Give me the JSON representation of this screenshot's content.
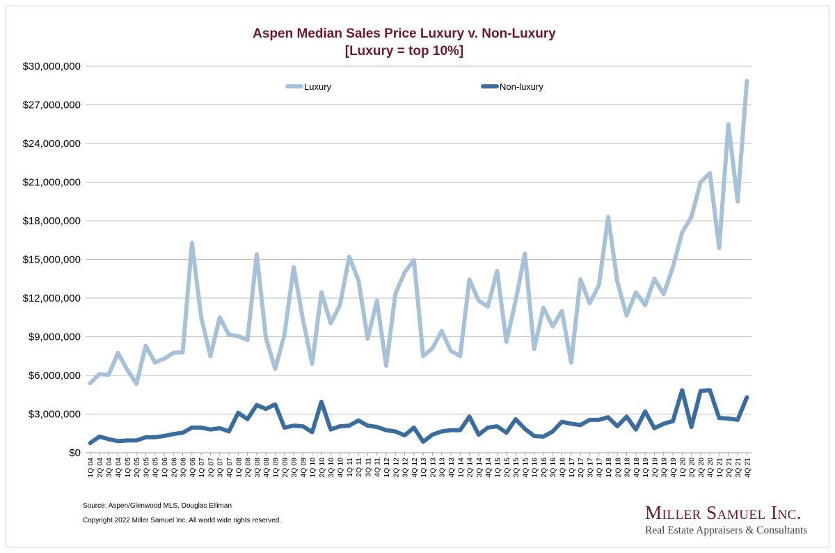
{
  "chart_data": {
    "type": "line",
    "title": "Aspen Median Sales Price Luxury v. Non-Luxury",
    "subtitle": "[Luxury = top 10%]",
    "xlabel": "",
    "ylabel": "",
    "ylim": [
      0,
      30000000
    ],
    "ytick_values": [
      0,
      3000000,
      6000000,
      9000000,
      12000000,
      15000000,
      18000000,
      21000000,
      24000000,
      27000000,
      30000000
    ],
    "ytick_labels": [
      "$0",
      "$3,000,000",
      "$6,000,000",
      "$9,000,000",
      "$12,000,000",
      "$15,000,000",
      "$18,000,000",
      "$21,000,000",
      "$24,000,000",
      "$27,000,000",
      "$30,000,000"
    ],
    "grid": true,
    "legend_position": "top",
    "categories": [
      "1Q 04",
      "2Q 04",
      "3Q 04",
      "4Q 04",
      "1Q 05",
      "2Q 05",
      "3Q 05",
      "4Q 05",
      "1Q 06",
      "2Q 06",
      "3Q 06",
      "4Q 06",
      "1Q 07",
      "2Q 07",
      "3Q 07",
      "4Q 07",
      "1Q 08",
      "2Q 08",
      "3Q 08",
      "4Q 08",
      "1Q 09",
      "2Q 09",
      "3Q 09",
      "4Q 09",
      "1Q 10",
      "2Q 10",
      "3Q 10",
      "4Q 10",
      "1Q 11",
      "2Q 11",
      "3Q 11",
      "4Q 11",
      "1Q 12",
      "2Q 12",
      "3Q 12",
      "4Q 12",
      "1Q 13",
      "2Q 13",
      "3Q 13",
      "4Q 13",
      "1Q 14",
      "2Q 14",
      "3Q 14",
      "4Q 14",
      "1Q 15",
      "2Q 15",
      "3Q 15",
      "4Q 15",
      "1Q 16",
      "2Q 16",
      "3Q 16",
      "4Q 16",
      "1Q 17",
      "2Q 17",
      "3Q 17",
      "4Q 17",
      "1Q 18",
      "2Q 18",
      "3Q 18",
      "4Q 18",
      "1Q 19",
      "2Q 19",
      "3Q 19",
      "4Q 19",
      "1Q 20",
      "2Q 20",
      "3Q 20",
      "4Q 20",
      "1Q 21",
      "2Q 21",
      "3Q 21",
      "4Q 21"
    ],
    "series": [
      {
        "name": "Luxury",
        "color": "#a7c2d8",
        "values": [
          5400000,
          6100000,
          6050000,
          7750000,
          6450000,
          5350000,
          8300000,
          7000000,
          7300000,
          7750000,
          7800000,
          16300000,
          10500000,
          7500000,
          10500000,
          9150000,
          9050000,
          8750000,
          15400000,
          8900000,
          6500000,
          9150000,
          14400000,
          10350000,
          6900000,
          12450000,
          10050000,
          11450000,
          15200000,
          13400000,
          8850000,
          11800000,
          6750000,
          12350000,
          14000000,
          14950000,
          7500000,
          8100000,
          9450000,
          7900000,
          7500000,
          13450000,
          11800000,
          11350000,
          14100000,
          8600000,
          11800000,
          15450000,
          8050000,
          11250000,
          9800000,
          11000000,
          7000000,
          13450000,
          11600000,
          13000000,
          18300000,
          13250000,
          10650000,
          12450000,
          11450000,
          13500000,
          12300000,
          14400000,
          17100000,
          18300000,
          21000000,
          21700000,
          15900000,
          25500000,
          19500000,
          28850000
        ]
      },
      {
        "name": "Non-luxury",
        "color": "#3b6c9e",
        "values": [
          750000,
          1250000,
          1050000,
          900000,
          950000,
          950000,
          1200000,
          1200000,
          1300000,
          1450000,
          1550000,
          1950000,
          1950000,
          1800000,
          1900000,
          1650000,
          3100000,
          2600000,
          3700000,
          3400000,
          3750000,
          1950000,
          2100000,
          2050000,
          1600000,
          3950000,
          1800000,
          2050000,
          2100000,
          2500000,
          2100000,
          2000000,
          1750000,
          1650000,
          1350000,
          1950000,
          850000,
          1400000,
          1650000,
          1750000,
          1750000,
          2800000,
          1400000,
          1950000,
          2050000,
          1550000,
          2600000,
          1850000,
          1300000,
          1250000,
          1650000,
          2400000,
          2250000,
          2150000,
          2550000,
          2550000,
          2750000,
          2050000,
          2800000,
          1800000,
          3200000,
          1900000,
          2250000,
          2450000,
          4850000,
          2000000,
          4800000,
          4850000,
          2700000,
          2650000,
          2550000,
          4300000
        ]
      }
    ]
  },
  "footer": {
    "source": "Source: Aspen/Glenwood MLS, Douglas Elliman",
    "copyright": "Copyright 2022 Miller Samuel Inc.  All world wide rights reserved."
  },
  "brand": {
    "name": "Miller Samuel Inc.",
    "tagline": "Real Estate Appraisers & Consultants"
  }
}
